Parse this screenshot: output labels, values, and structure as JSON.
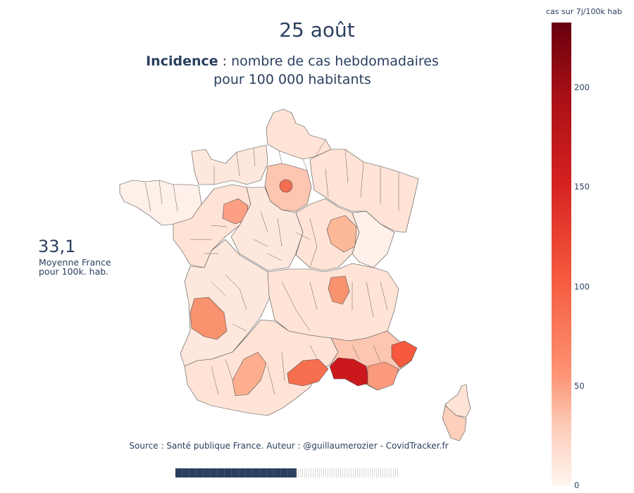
{
  "header": {
    "date": "25 août",
    "subtitle_bold": "Incidence",
    "subtitle_rest_line1": " : nombre de cas hebdomadaires",
    "subtitle_line2": "pour 100 000 habitants"
  },
  "national_average": {
    "value": "33,1",
    "label_line1": "Moyenne France",
    "label_line2": "pour 100k. hab."
  },
  "source": "Source : Santé publique France. Auteur : @guillaumerozier - CovidTracker.fr",
  "animation": {
    "progress_fraction": 0.54
  },
  "colorbar": {
    "title": "cas sur 7j/100k hab",
    "min": 0,
    "max": 233,
    "ticks": [
      "0",
      "50",
      "100",
      "150",
      "200"
    ],
    "tick_values": [
      0,
      50,
      100,
      150,
      200
    ],
    "colorscale": [
      "#fff5f0",
      "#fdd0bc",
      "#fc9474",
      "#f6593d",
      "#d42020",
      "#a50f15",
      "#67000d"
    ]
  },
  "map_regions": {
    "description_colors": {
      "lightest": "#fff0e9",
      "light": "#fee3d6",
      "medium": "#fdc6b0",
      "strong": "#fc9c7f",
      "very_strong": "#f6704f",
      "highest": "#cb181d"
    }
  }
}
